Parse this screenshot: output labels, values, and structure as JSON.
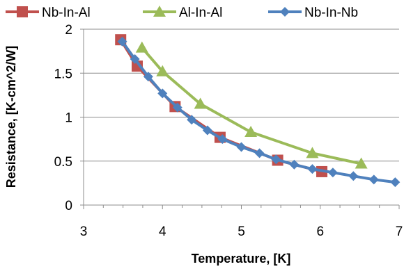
{
  "chart_data": {
    "type": "line",
    "xlabel": "Temperature, [K]",
    "ylabel": "Resistance, [K-cm^2/W]",
    "xlim": [
      3,
      7
    ],
    "ylim": [
      0,
      2
    ],
    "x_ticks": [
      "3",
      "4",
      "5",
      "6",
      "7"
    ],
    "y_ticks": [
      "0",
      "0.5",
      "1",
      "1.5",
      "2"
    ],
    "x_tick_values": [
      3,
      4,
      5,
      6,
      7
    ],
    "y_tick_values": [
      0,
      0.5,
      1,
      1.5,
      2
    ],
    "grid": "horizontal",
    "legend_position": "top",
    "series": [
      {
        "name": "Nb-In-Al",
        "color": "#c0504d",
        "marker": "square",
        "x": [
          3.47,
          3.68,
          4.16,
          4.73,
          5.46,
          6.02
        ],
        "y": [
          1.88,
          1.58,
          1.12,
          0.77,
          0.51,
          0.38
        ]
      },
      {
        "name": "Al-In-Al",
        "color": "#9bbb59",
        "marker": "triangle",
        "x": [
          3.74,
          4.0,
          4.48,
          5.12,
          5.9,
          6.52
        ],
        "y": [
          1.79,
          1.52,
          1.15,
          0.83,
          0.59,
          0.47
        ]
      },
      {
        "name": "Nb-In-Nb",
        "color": "#4f81bd",
        "marker": "diamond",
        "x": [
          3.49,
          3.65,
          3.82,
          4.0,
          4.19,
          4.37,
          4.57,
          4.76,
          5.0,
          5.23,
          5.44,
          5.67,
          5.9,
          6.16,
          6.42,
          6.68,
          6.95
        ],
        "y": [
          1.86,
          1.66,
          1.46,
          1.27,
          1.11,
          0.97,
          0.85,
          0.75,
          0.66,
          0.59,
          0.52,
          0.46,
          0.41,
          0.37,
          0.33,
          0.29,
          0.26
        ]
      }
    ]
  }
}
